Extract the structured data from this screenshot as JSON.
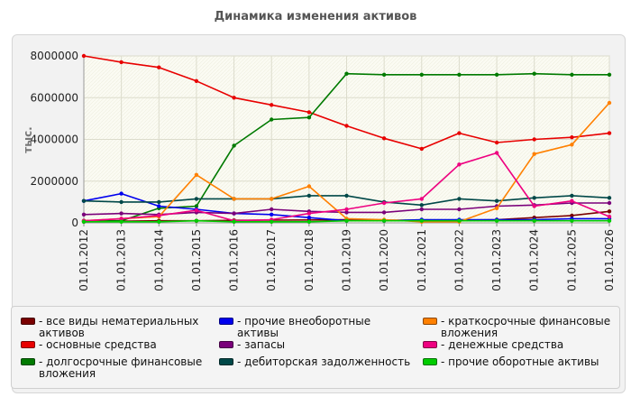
{
  "chart_data": {
    "type": "line",
    "title": "Динамика изменения активов",
    "ylabel": "тыс.",
    "xlabel": "",
    "ylim": [
      0,
      8000000
    ],
    "yticks": [
      "0",
      "2000000",
      "4000000",
      "6000000",
      "8000000"
    ],
    "categories": [
      "01.01.2012",
      "01.01.2013",
      "01.01.2014",
      "01.01.2015",
      "01.01.2016",
      "01.01.2017",
      "01.01.2018",
      "01.01.2019",
      "01.01.2020",
      "01.01.2021",
      "01.01.2022",
      "01.01.2023",
      "01.01.2024",
      "01.01.2025",
      "01.01.2026"
    ],
    "grid": true,
    "legend_position": "bottom",
    "series": [
      {
        "name": "- все виды нематериальных активов",
        "color": "#7a0000",
        "values": [
          50000,
          80000,
          100000,
          100000,
          120000,
          130000,
          140000,
          150000,
          130000,
          120000,
          130000,
          150000,
          250000,
          350000,
          550000
        ]
      },
      {
        "name": "- основные средства",
        "color": "#e80000",
        "values": [
          8000000,
          7700000,
          7450000,
          6800000,
          6000000,
          5650000,
          5300000,
          4650000,
          4050000,
          3550000,
          4300000,
          3850000,
          4000000,
          4100000,
          4300000
        ]
      },
      {
        "name": "- долгосрочные финансовые вложения",
        "color": "#007a00",
        "values": [
          100000,
          100000,
          700000,
          800000,
          3700000,
          4950000,
          5050000,
          7150000,
          7100000,
          7100000,
          7100000,
          7100000,
          7150000,
          7100000,
          7100000
        ]
      },
      {
        "name": "- прочие внеоборотные активы",
        "color": "#0000ee",
        "values": [
          1050000,
          1400000,
          800000,
          650000,
          450000,
          400000,
          250000,
          100000,
          100000,
          150000,
          150000,
          150000,
          150000,
          200000,
          200000
        ]
      },
      {
        "name": "- запасы",
        "color": "#7a007a",
        "values": [
          400000,
          450000,
          400000,
          500000,
          450000,
          650000,
          550000,
          500000,
          500000,
          650000,
          650000,
          800000,
          850000,
          950000,
          950000
        ]
      },
      {
        "name": "- дебиторская задолженность",
        "color": "#004848",
        "values": [
          1050000,
          1000000,
          1000000,
          1150000,
          1150000,
          1150000,
          1300000,
          1300000,
          1000000,
          850000,
          1150000,
          1050000,
          1200000,
          1300000,
          1200000
        ]
      },
      {
        "name": "- краткосрочные финансовые вложения",
        "color": "#ff8000",
        "values": [
          100000,
          200000,
          300000,
          2300000,
          1150000,
          1150000,
          1750000,
          200000,
          150000,
          50000,
          50000,
          700000,
          3300000,
          3750000,
          5750000
        ]
      },
      {
        "name": "- денежные средства",
        "color": "#ee0080",
        "values": [
          100000,
          200000,
          350000,
          600000,
          100000,
          150000,
          450000,
          650000,
          950000,
          1150000,
          2800000,
          3350000,
          800000,
          1050000,
          300000
        ]
      },
      {
        "name": "- прочие оборотные активы",
        "color": "#00cc00",
        "values": [
          50000,
          50000,
          50000,
          100000,
          50000,
          50000,
          50000,
          100000,
          100000,
          100000,
          100000,
          100000,
          100000,
          100000,
          100000
        ]
      }
    ]
  }
}
